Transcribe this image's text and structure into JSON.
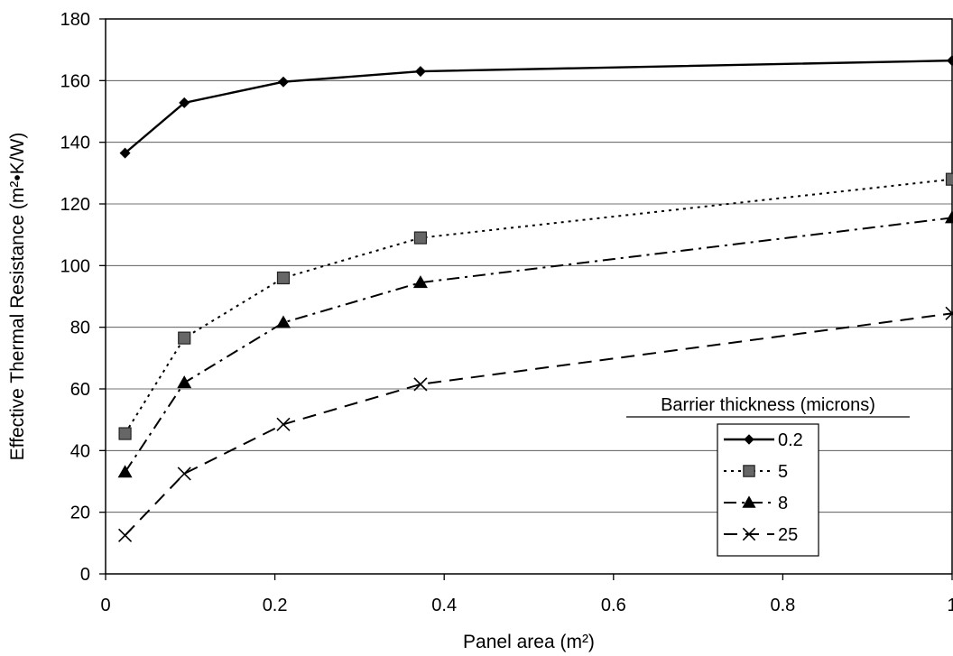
{
  "chart_data": {
    "type": "line",
    "title": "",
    "xlabel": "Panel area (m²)",
    "ylabel": "Effective Thermal Resistance (m²•K/W)",
    "xlim": [
      0,
      1
    ],
    "ylim": [
      0,
      180
    ],
    "x_ticks": [
      0,
      0.2,
      0.4,
      0.6,
      0.8,
      1
    ],
    "x_tick_labels": [
      "0",
      "0.2",
      "0.4",
      "0.6",
      "0.8",
      "1"
    ],
    "y_ticks": [
      0,
      20,
      40,
      60,
      80,
      100,
      120,
      140,
      160,
      180
    ],
    "y_tick_labels": [
      "0",
      "20",
      "40",
      "60",
      "80",
      "100",
      "120",
      "140",
      "160",
      "180"
    ],
    "grid": "horizontal",
    "legend": {
      "title": "Barrier thickness (microns)",
      "placement": "bottom-right"
    },
    "series": [
      {
        "name": "0.2",
        "marker": "diamond",
        "line": "solid",
        "x": [
          0.023,
          0.093,
          0.21,
          0.372,
          1.0
        ],
        "y": [
          136.5,
          152.8,
          159.6,
          163.0,
          166.5
        ]
      },
      {
        "name": "5",
        "marker": "square",
        "line": "dotted",
        "x": [
          0.023,
          0.093,
          0.21,
          0.372,
          1.0
        ],
        "y": [
          45.5,
          76.5,
          96.0,
          109.0,
          128.0
        ]
      },
      {
        "name": "8",
        "marker": "triangle",
        "line": "dashdot",
        "x": [
          0.023,
          0.093,
          0.21,
          0.372,
          1.0
        ],
        "y": [
          33.0,
          62.0,
          81.5,
          94.5,
          115.5
        ]
      },
      {
        "name": "25",
        "marker": "x",
        "line": "dashed",
        "x": [
          0.023,
          0.093,
          0.21,
          0.372,
          1.0
        ],
        "y": [
          12.5,
          32.5,
          48.5,
          61.5,
          84.5
        ]
      }
    ]
  }
}
